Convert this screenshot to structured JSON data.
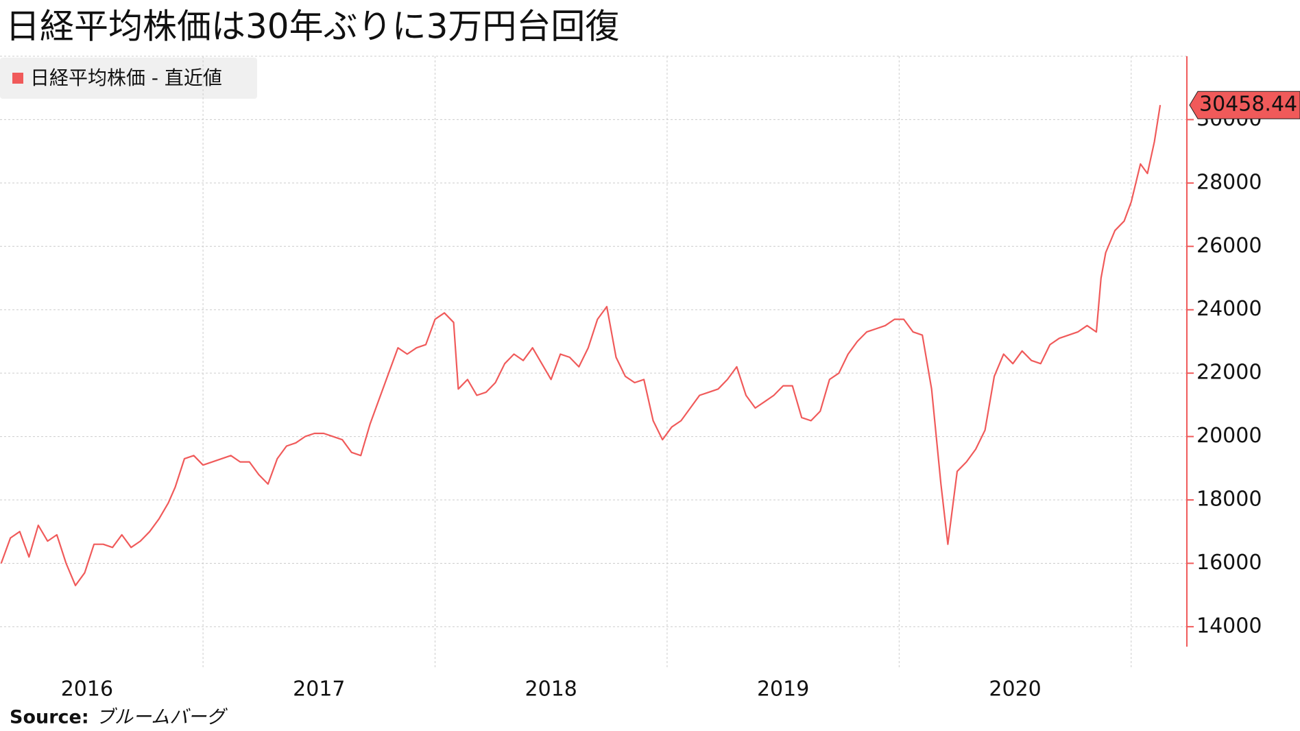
{
  "chart_data": {
    "type": "line",
    "title": "日経平均株価は30年ぶりに3万円台回復",
    "source_label": "Source:",
    "source": "ブルームバーグ",
    "legend": "top-left",
    "xlim": [
      2016.125,
      2021.24
    ],
    "xticks": [
      {
        "value": 2016.5,
        "label": "2016"
      },
      {
        "value": 2017.5,
        "label": "2017"
      },
      {
        "value": 2018.5,
        "label": "2018"
      },
      {
        "value": 2019.5,
        "label": "2019"
      },
      {
        "value": 2020.5,
        "label": "2020"
      }
    ],
    "xgrid": [
      2017,
      2018,
      2019,
      2020,
      2021
    ],
    "ylim": [
      13370,
      32000
    ],
    "yticks": [
      14000,
      16000,
      18000,
      20000,
      22000,
      24000,
      26000,
      28000,
      30000
    ],
    "grid": true,
    "x": [
      2016.13,
      2016.17,
      2016.21,
      2016.25,
      2016.29,
      2016.33,
      2016.37,
      2016.41,
      2016.45,
      2016.49,
      2016.53,
      2016.57,
      2016.61,
      2016.65,
      2016.69,
      2016.73,
      2016.77,
      2016.81,
      2016.85,
      2016.88,
      2016.92,
      2016.96,
      2017.0,
      2017.04,
      2017.08,
      2017.12,
      2017.16,
      2017.2,
      2017.24,
      2017.28,
      2017.32,
      2017.36,
      2017.4,
      2017.44,
      2017.48,
      2017.52,
      2017.56,
      2017.6,
      2017.64,
      2017.68,
      2017.72,
      2017.76,
      2017.8,
      2017.84,
      2017.88,
      2017.92,
      2017.96,
      2018.0,
      2018.04,
      2018.08,
      2018.1,
      2018.14,
      2018.18,
      2018.22,
      2018.26,
      2018.3,
      2018.34,
      2018.38,
      2018.42,
      2018.46,
      2018.5,
      2018.54,
      2018.58,
      2018.62,
      2018.66,
      2018.7,
      2018.74,
      2018.78,
      2018.82,
      2018.86,
      2018.9,
      2018.94,
      2018.98,
      2019.02,
      2019.06,
      2019.1,
      2019.14,
      2019.18,
      2019.22,
      2019.26,
      2019.3,
      2019.34,
      2019.38,
      2019.42,
      2019.46,
      2019.5,
      2019.54,
      2019.58,
      2019.62,
      2019.66,
      2019.7,
      2019.74,
      2019.78,
      2019.82,
      2019.86,
      2019.9,
      2019.94,
      2019.98,
      2020.02,
      2020.06,
      2020.1,
      2020.14,
      2020.18,
      2020.21,
      2020.25,
      2020.29,
      2020.33,
      2020.37,
      2020.41,
      2020.45,
      2020.49,
      2020.53,
      2020.57,
      2020.61,
      2020.65,
      2020.69,
      2020.73,
      2020.77,
      2020.81,
      2020.85,
      2020.87,
      2020.89,
      2020.93,
      2020.97,
      2021.0,
      2021.04,
      2021.07,
      2021.1,
      2021.125
    ],
    "series": [
      {
        "name": "日経平均株価 - 直近値",
        "color": "#f05a5a",
        "values": [
          16000,
          16800,
          17000,
          16200,
          17200,
          16700,
          16900,
          16000,
          15300,
          15700,
          16600,
          16600,
          16500,
          16900,
          16500,
          16700,
          17000,
          17400,
          17900,
          18400,
          19300,
          19400,
          19100,
          19200,
          19300,
          19400,
          19200,
          19200,
          18800,
          18500,
          19300,
          19700,
          19800,
          20000,
          20100,
          20100,
          20000,
          19900,
          19500,
          19400,
          20400,
          21200,
          22000,
          22800,
          22600,
          22800,
          22900,
          23700,
          23900,
          23600,
          21500,
          21800,
          21300,
          21400,
          21700,
          22300,
          22600,
          22400,
          22800,
          22300,
          21800,
          22600,
          22500,
          22200,
          22800,
          23700,
          24100,
          22500,
          21900,
          21700,
          21800,
          20500,
          19900,
          20300,
          20500,
          20900,
          21300,
          21400,
          21500,
          21800,
          22200,
          21300,
          20900,
          21100,
          21300,
          21600,
          21600,
          20600,
          20500,
          20800,
          21800,
          22000,
          22600,
          23000,
          23300,
          23400,
          23500,
          23700,
          23700,
          23300,
          23200,
          21500,
          18500,
          16600,
          18900,
          19200,
          19600,
          20200,
          21900,
          22600,
          22300,
          22700,
          22400,
          22300,
          22900,
          23100,
          23200,
          23300,
          23500,
          23300,
          25000,
          25800,
          26500,
          26800,
          27400,
          28600,
          28300,
          29300,
          30458.44
        ]
      }
    ]
  }
}
